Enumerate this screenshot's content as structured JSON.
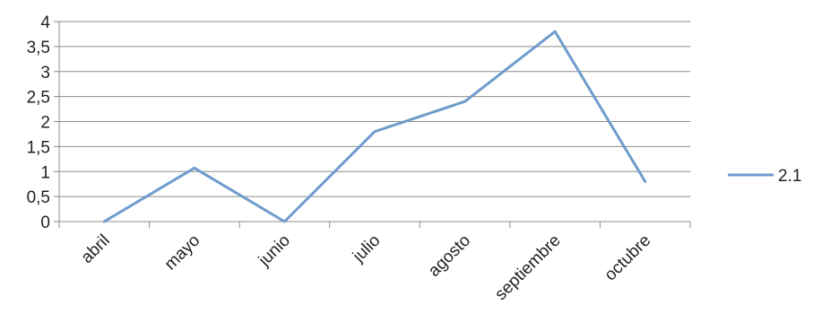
{
  "chart_data": {
    "type": "line",
    "title": "",
    "xlabel": "",
    "ylabel": "",
    "categories": [
      "abril",
      "mayo",
      "junio",
      "julio",
      "agosto",
      "septiembre",
      "octubre"
    ],
    "series": [
      {
        "name": "2.1",
        "values": [
          0,
          1.07,
          0,
          1.8,
          2.4,
          3.8,
          0.8
        ],
        "color": "#6d9ccd"
      }
    ],
    "y_ticks": [
      "0",
      "0,5",
      "1",
      "1,5",
      "2",
      "2,5",
      "3",
      "3,5",
      "4"
    ],
    "ylim": [
      0,
      4
    ],
    "grid": true,
    "grid_color": "#8c8c8c",
    "legend_position": "right"
  }
}
